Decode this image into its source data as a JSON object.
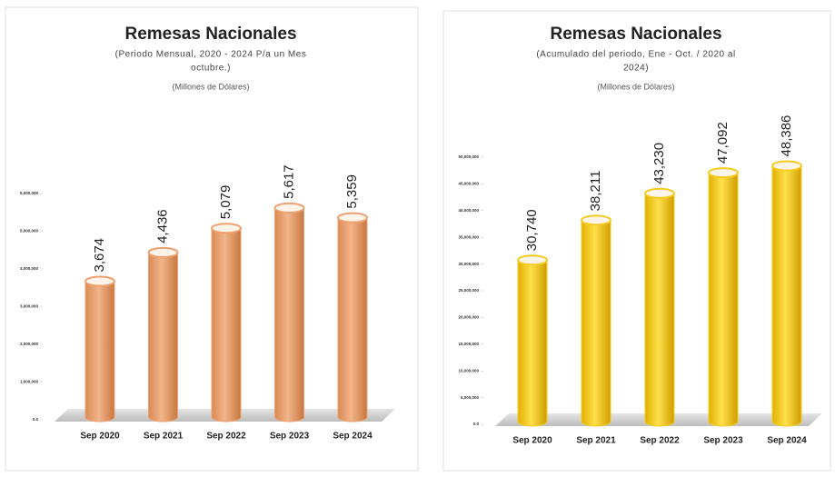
{
  "chart_data": [
    {
      "type": "bar",
      "title": "Remesas Nacionales",
      "subtitle": [
        "(Periodo Mensual, 2020 - 2024 P/a un Mes",
        "octubre.)"
      ],
      "unit_note": "(Millones de Dólares)",
      "categories": [
        "Sep 2020",
        "Sep 2021",
        "Sep 2022",
        "Sep 2023",
        "Sep 2024"
      ],
      "values": [
        3674000,
        4436000,
        5079000,
        5617000,
        5359000
      ],
      "value_labels": [
        "3,674",
        "4,436",
        "5,079",
        "5,617",
        "5,359"
      ],
      "color": "#eda170",
      "ylim": [
        0,
        6000000
      ],
      "yticks": [
        {
          "value": 0,
          "label": "0.0"
        },
        {
          "value": 1000000,
          "label": "1,000,000"
        },
        {
          "value": 2000000,
          "label": "2,000,000"
        },
        {
          "value": 3000000,
          "label": "3,000,000"
        },
        {
          "value": 4000000,
          "label": "4,000,000"
        },
        {
          "value": 5000000,
          "label": "5,000,000"
        },
        {
          "value": 6000000,
          "label": "6,000,000"
        }
      ]
    },
    {
      "type": "bar",
      "title": "Remesas Nacionales",
      "subtitle": [
        "(Acumulado del periodo, Ene - Oct. / 2020 al",
        "2024)"
      ],
      "unit_note": "(Millones de Dólares)",
      "categories": [
        "Sep 2020",
        "Sep 2021",
        "Sep 2022",
        "Sep 2023",
        "Sep 2024"
      ],
      "values": [
        30740000,
        38211000,
        43230000,
        47092000,
        48386000
      ],
      "value_labels": [
        "30,740",
        "38,211",
        "43,230",
        "47,092",
        "48,386"
      ],
      "color": "#f5cc1e",
      "ylim": [
        0,
        50000000
      ],
      "yticks": [
        {
          "value": 0,
          "label": "0.0"
        },
        {
          "value": 5000000,
          "label": "5,000,000"
        },
        {
          "value": 10000000,
          "label": "10,000,000"
        },
        {
          "value": 15000000,
          "label": "15,000,000"
        },
        {
          "value": 20000000,
          "label": "20,000,000"
        },
        {
          "value": 25000000,
          "label": "25,000,000"
        },
        {
          "value": 30000000,
          "label": "30,000,000"
        },
        {
          "value": 35000000,
          "label": "35,000,000"
        },
        {
          "value": 40000000,
          "label": "40,000,000"
        },
        {
          "value": 45000000,
          "label": "45,000,000"
        },
        {
          "value": 50000000,
          "label": "50,000,000"
        }
      ]
    }
  ]
}
